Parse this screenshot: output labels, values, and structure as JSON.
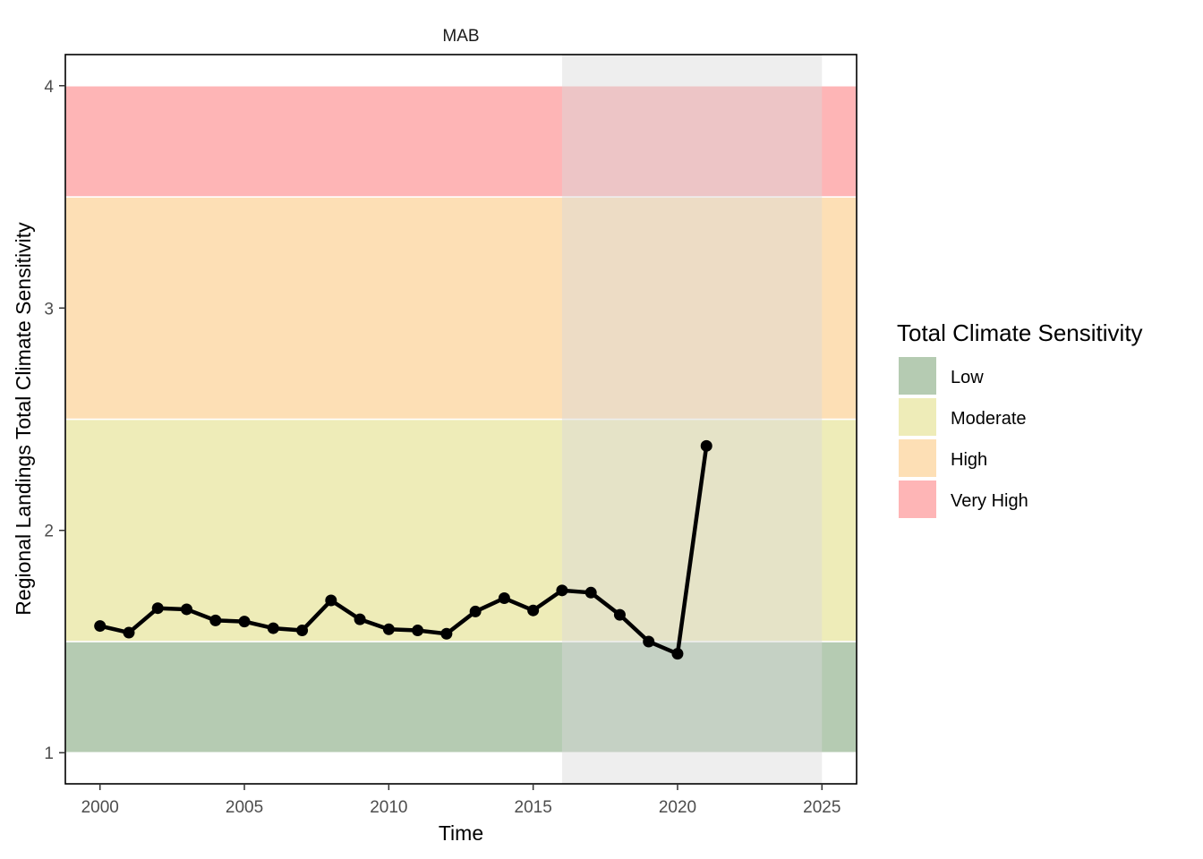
{
  "chart_data": {
    "type": "line",
    "facet_title": "MAB",
    "xlabel": "Time",
    "ylabel": "Regional Landings Total Climate Sensitivity",
    "xlim": [
      1998.8,
      2026.2
    ],
    "ylim": [
      0.86,
      4.14
    ],
    "x_ticks": [
      2000,
      2005,
      2010,
      2015,
      2020,
      2025
    ],
    "y_ticks": [
      1,
      2,
      3,
      4
    ],
    "grid": false,
    "shaded_period": {
      "from": 2016,
      "to": 2025,
      "color": "#d9d9d9"
    },
    "bands": [
      {
        "label": "Low",
        "from": 1.0,
        "to": 1.5,
        "color": "#b5cbb2"
      },
      {
        "label": "Moderate",
        "from": 1.5,
        "to": 2.5,
        "color": "#eeecb8"
      },
      {
        "label": "High",
        "from": 2.5,
        "to": 3.5,
        "color": "#fddfb5"
      },
      {
        "label": "Very High",
        "from": 3.5,
        "to": 4.0,
        "color": "#feb5b6"
      }
    ],
    "legend": {
      "title": "Total Climate Sensitivity",
      "placement": "right",
      "entries": [
        "Low",
        "Moderate",
        "High",
        "Very High"
      ]
    },
    "series": [
      {
        "color": "#000000",
        "x": [
          2000,
          2001,
          2002,
          2003,
          2004,
          2005,
          2006,
          2007,
          2008,
          2009,
          2010,
          2011,
          2012,
          2013,
          2014,
          2015,
          2016,
          2017,
          2018,
          2019,
          2020,
          2021
        ],
        "y": [
          1.57,
          1.54,
          1.65,
          1.645,
          1.595,
          1.59,
          1.56,
          1.55,
          1.685,
          1.6,
          1.555,
          1.55,
          1.535,
          1.635,
          1.695,
          1.64,
          1.73,
          1.72,
          1.62,
          1.5,
          1.445,
          2.38
        ]
      }
    ]
  }
}
